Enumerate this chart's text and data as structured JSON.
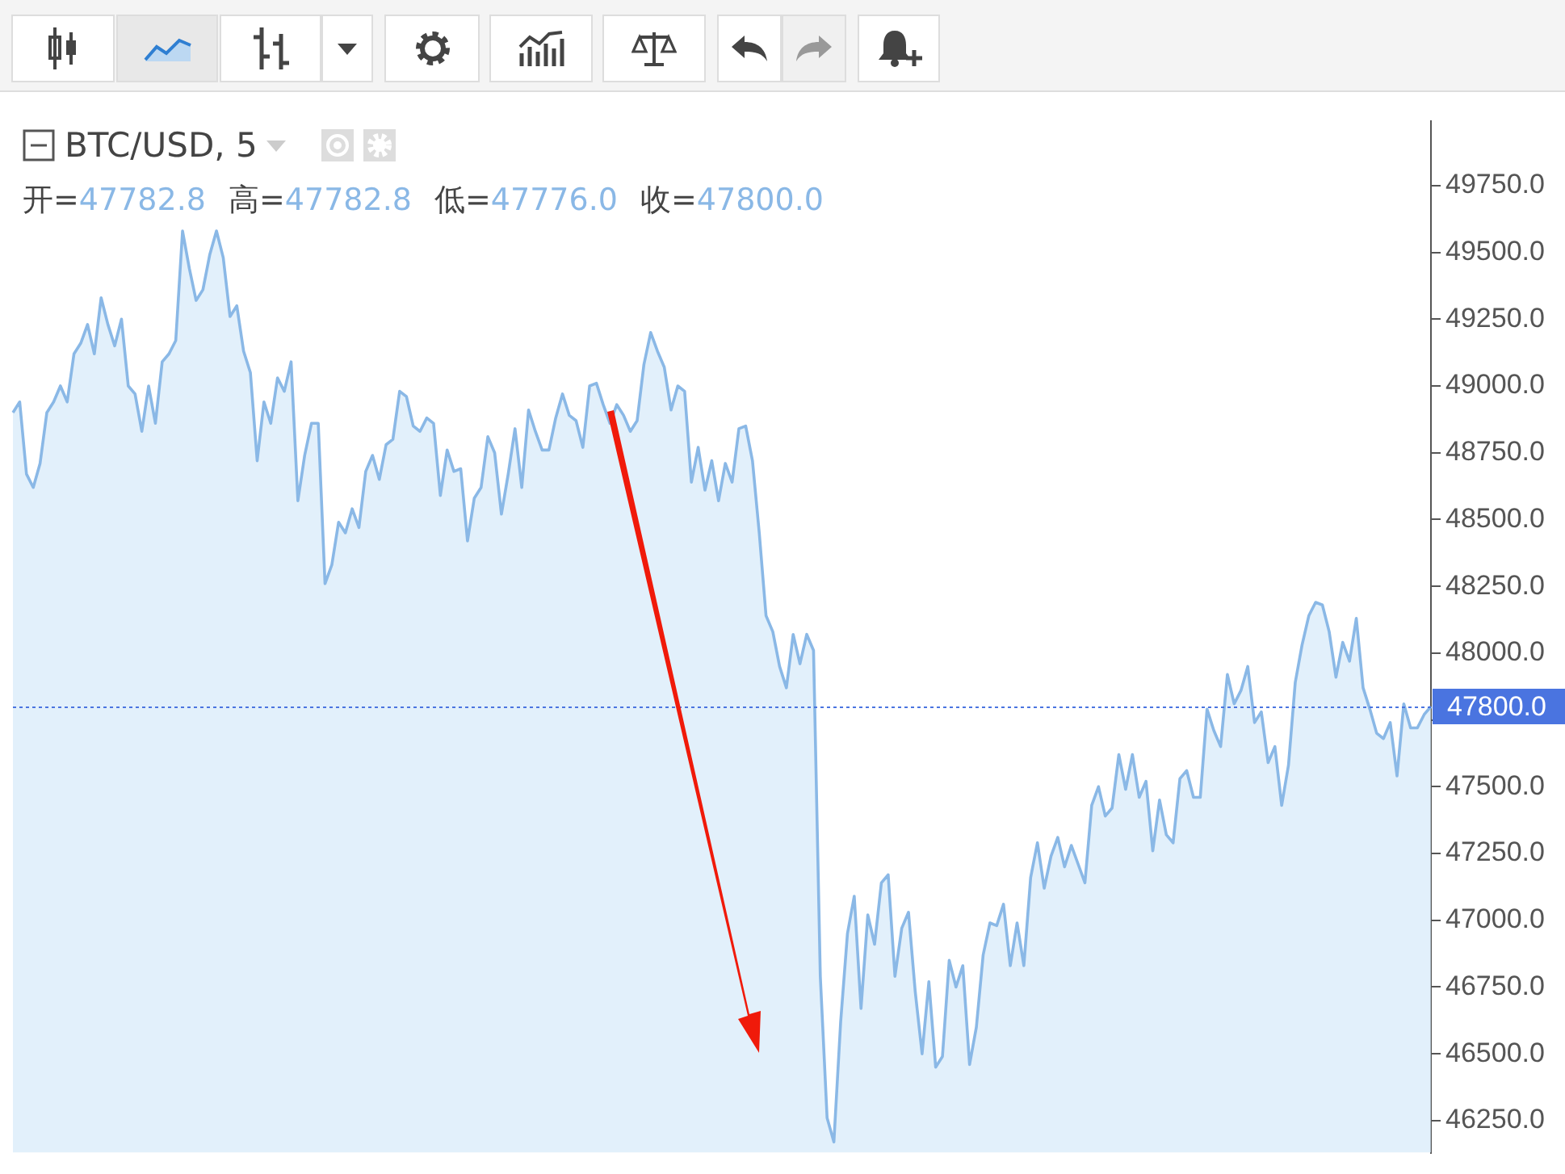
{
  "chart_data": {
    "type": "area",
    "title": "BTC/USD, 5",
    "annotations": [
      "开=",
      "47782.8",
      "高=",
      "47782.8",
      "低=",
      "47776.0",
      "收=",
      "47800.0"
    ],
    "categories": [
      null,
      null,
      null,
      null,
      null,
      null,
      null,
      null,
      null,
      null,
      null,
      null,
      null,
      null,
      null,
      null,
      null,
      null,
      null,
      null,
      null,
      null,
      null,
      null,
      null,
      null,
      null,
      null,
      null,
      null,
      null,
      null,
      null,
      null,
      null,
      null,
      null,
      null,
      null,
      null,
      null,
      null,
      null,
      null,
      null,
      null,
      null,
      null,
      null,
      null,
      null,
      null,
      null,
      null,
      null,
      null,
      null,
      null,
      null,
      null,
      null,
      null,
      null,
      null,
      null,
      null,
      null,
      null,
      null,
      null,
      null,
      null,
      null,
      null,
      null,
      null,
      null,
      null,
      null,
      null,
      null,
      null,
      null,
      null,
      null,
      null,
      null,
      null,
      null,
      null,
      null,
      null,
      null,
      null,
      null,
      null,
      null,
      null,
      null,
      null,
      null,
      null,
      null,
      null,
      null,
      null,
      null,
      null,
      null,
      null,
      null,
      null,
      null,
      null,
      null,
      null,
      null,
      null,
      null,
      null,
      null,
      null,
      null,
      null,
      null,
      null,
      null,
      null,
      null,
      null,
      null,
      null,
      null,
      null,
      null,
      null,
      null,
      null,
      null,
      null,
      null,
      null,
      null,
      null,
      null,
      null,
      null,
      null,
      null,
      null,
      null,
      null,
      null,
      null,
      null,
      null,
      null,
      null,
      null,
      null,
      null,
      null,
      null,
      null,
      null,
      null,
      null,
      null,
      null,
      null,
      null,
      null,
      null,
      null,
      null,
      null,
      null,
      null,
      null,
      null,
      null,
      null,
      null,
      null,
      null,
      null,
      null,
      null,
      null,
      null,
      null,
      null,
      null,
      null,
      null,
      null,
      null,
      null,
      null,
      null,
      null,
      null,
      null,
      null,
      null,
      null,
      null,
      null,
      null,
      null
    ],
    "series": [
      {
        "color": "#8ab8e6",
        "values": [
          48900,
          48940,
          48670,
          48620,
          48710,
          48900,
          48940,
          49000,
          48940,
          49120,
          49160,
          49230,
          49120,
          49330,
          49230,
          49150,
          49250,
          49000,
          48970,
          48830,
          49000,
          48860,
          49090,
          49120,
          49170,
          49580,
          49440,
          49320,
          49360,
          49490,
          49580,
          49480,
          49260,
          49300,
          49130,
          49050,
          48720,
          48940,
          48860,
          49030,
          48980,
          49090,
          48570,
          48740,
          48860,
          48860,
          48260,
          48330,
          48490,
          48450,
          48540,
          48470,
          48680,
          48740,
          48650,
          48780,
          48800,
          48980,
          48960,
          48850,
          48830,
          48880,
          48860,
          48590,
          48760,
          48680,
          48690,
          48420,
          48580,
          48620,
          48810,
          48750,
          48520,
          48670,
          48840,
          48620,
          48910,
          48830,
          48760,
          48760,
          48880,
          48970,
          48890,
          48870,
          48770,
          49000,
          49010,
          48930,
          48860,
          48930,
          48890,
          48830,
          48870,
          49080,
          49200,
          49130,
          49070,
          48910,
          49000,
          48980,
          48640,
          48770,
          48610,
          48720,
          48570,
          48710,
          48640,
          48840,
          48850,
          48720,
          48450,
          48140,
          48080,
          47950,
          47870,
          48070,
          47960,
          48070,
          48010,
          46790,
          46260,
          46170,
          46620,
          46950,
          47090,
          46670,
          47020,
          46910,
          47140,
          47170,
          46790,
          46970,
          47030,
          46730,
          46500,
          46770,
          46450,
          46490,
          46850,
          46750,
          46830,
          46460,
          46600,
          46870,
          46990,
          46980,
          47060,
          46830,
          46990,
          46830,
          47160,
          47290,
          47120,
          47240,
          47310,
          47200,
          47280,
          47210,
          47140,
          47430,
          47500,
          47390,
          47420,
          47620,
          47490,
          47620,
          47460,
          47520,
          47260,
          47450,
          47320,
          47290,
          47530,
          47560,
          47460,
          47460,
          47790,
          47710,
          47650,
          47920,
          47810,
          47860,
          47950,
          47740,
          47780,
          47590,
          47650,
          47430,
          47580,
          47890,
          48030,
          48140,
          48190,
          48180,
          48080,
          47910,
          48040,
          47970,
          48130,
          47870,
          47790,
          47700,
          47680,
          47740,
          47540,
          47810,
          47720,
          47720,
          47770,
          47800
        ]
      }
    ],
    "ylim": [
      46130,
      49990
    ],
    "yticks": [
      {
        "value": 46250,
        "label": "46250.0"
      },
      {
        "value": 46500,
        "label": "46500.0"
      },
      {
        "value": 46750,
        "label": "46750.0"
      },
      {
        "value": 47000,
        "label": "47000.0"
      },
      {
        "value": 47250,
        "label": "47250.0"
      },
      {
        "value": 47500,
        "label": "47500.0"
      },
      {
        "value": 47750,
        "label": null
      },
      {
        "value": 48000,
        "label": "48000.0"
      },
      {
        "value": 48250,
        "label": "48250.0"
      },
      {
        "value": 48500,
        "label": "48500.0"
      },
      {
        "value": 48750,
        "label": "48750.0"
      },
      {
        "value": 49000,
        "label": "49000.0"
      },
      {
        "value": 49250,
        "label": "49250.0"
      },
      {
        "value": 49500,
        "label": "49500.0"
      },
      {
        "value": 49750,
        "label": "49750.0"
      }
    ],
    "ref_lines": [
      {
        "axis": "y",
        "value": 47800,
        "label": "47800.0",
        "color": "#4a74e0",
        "line_style": "dotted"
      }
    ],
    "tick_labels": "y",
    "grid": false,
    "legend": false
  }
}
